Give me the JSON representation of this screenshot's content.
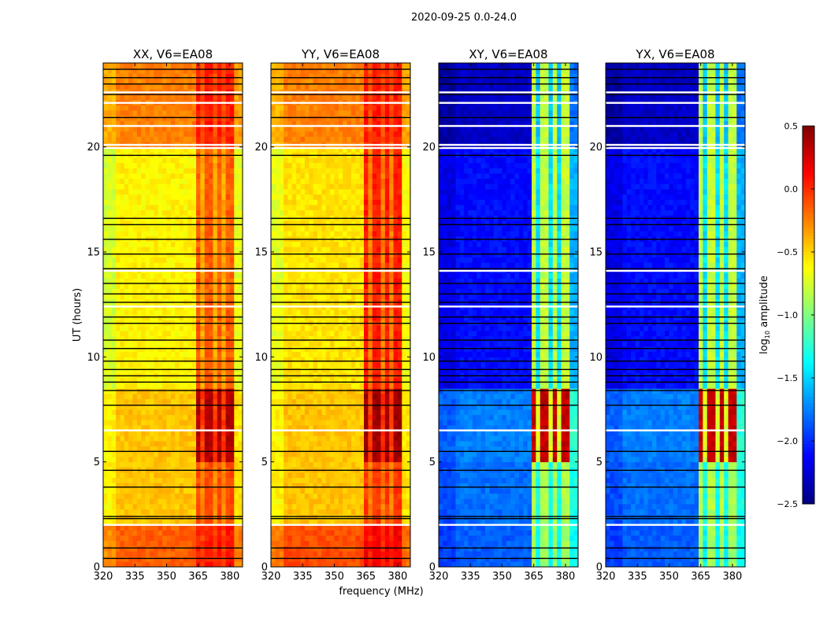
{
  "chart_data": {
    "type": "heatmap",
    "title": "2020-09-25 0.0-24.0",
    "xlabel": "frequency (MHz)",
    "ylabel": "UT (hours)",
    "xlim": [
      320,
      386
    ],
    "ylim": [
      0,
      24
    ],
    "xticks": [
      "320",
      "335",
      "350",
      "365",
      "380"
    ],
    "xtick_values": [
      320,
      335,
      350,
      365,
      380
    ],
    "yticks": [
      "0",
      "5",
      "10",
      "15",
      "20"
    ],
    "ytick_values": [
      0,
      5,
      10,
      15,
      20
    ],
    "colormap": "jet",
    "colorbar": {
      "label_main": "log",
      "label_sub": "10",
      "label_rest": " amplitude",
      "range": [
        -2.5,
        0.5
      ],
      "ticks": [
        "0.5",
        "0.0",
        "−0.5",
        "−1.0",
        "−1.5",
        "−2.0",
        "−2.5"
      ],
      "tick_values": [
        0.5,
        0.0,
        -0.5,
        -1.0,
        -1.5,
        -2.0,
        -2.5
      ]
    },
    "panels": [
      {
        "title": "XX, V6=EA08",
        "kind": "parallel",
        "segments": [
          {
            "t": [
              0,
              2
            ],
            "base": -0.15,
            "band": 0.05
          },
          {
            "t": [
              2,
              5
            ],
            "base": -0.45,
            "band": -0.1
          },
          {
            "t": [
              5,
              8.4
            ],
            "base": -0.45,
            "band": 0.35
          },
          {
            "t": [
              8.4,
              20
            ],
            "base": -0.6,
            "band": -0.15
          },
          {
            "t": [
              20,
              24
            ],
            "base": -0.25,
            "band": 0.05
          }
        ]
      },
      {
        "title": "YY, V6=EA08",
        "kind": "parallel",
        "segments": [
          {
            "t": [
              0,
              2
            ],
            "base": -0.1,
            "band": 0.15
          },
          {
            "t": [
              2,
              5
            ],
            "base": -0.45,
            "band": -0.05
          },
          {
            "t": [
              5,
              8.4
            ],
            "base": -0.45,
            "band": 0.4
          },
          {
            "t": [
              8.4,
              20
            ],
            "base": -0.55,
            "band": 0.05
          },
          {
            "t": [
              20,
              24
            ],
            "base": -0.25,
            "band": 0.05
          }
        ]
      },
      {
        "title": "XY, V6=EA08",
        "kind": "cross",
        "segments": [
          {
            "t": [
              0,
              2
            ],
            "base": -1.85,
            "band": -0.9
          },
          {
            "t": [
              2,
              5
            ],
            "base": -1.8,
            "band": -0.85
          },
          {
            "t": [
              5,
              8.4
            ],
            "base": -1.75,
            "band": 0.3
          },
          {
            "t": [
              8.4,
              20
            ],
            "base": -2.1,
            "band": -0.8
          },
          {
            "t": [
              20,
              24
            ],
            "base": -2.3,
            "band": -0.8
          }
        ]
      },
      {
        "title": "YX, V6=EA08",
        "kind": "cross",
        "segments": [
          {
            "t": [
              0,
              2
            ],
            "base": -1.85,
            "band": -0.9
          },
          {
            "t": [
              2,
              5
            ],
            "base": -1.8,
            "band": -0.85
          },
          {
            "t": [
              5,
              8.4
            ],
            "base": -1.75,
            "band": 0.3
          },
          {
            "t": [
              8.4,
              20
            ],
            "base": -2.1,
            "band": -0.8
          },
          {
            "t": [
              20,
              24
            ],
            "base": -2.3,
            "band": -0.8
          }
        ]
      }
    ],
    "rfi_band_mhz": [
      364,
      381
    ],
    "flagged_rows_black_hours": [
      0.4,
      0.9,
      2.3,
      2.4,
      3.8,
      4.6,
      5.5,
      7.7,
      8.4,
      8.8,
      9.1,
      9.4,
      9.8,
      10.4,
      10.8,
      11.6,
      11.9,
      12.6,
      13.0,
      13.5,
      14.2,
      14.9,
      15.6,
      16.3,
      16.6,
      19.6,
      21.4,
      22.5,
      23.0,
      23.3,
      23.7
    ],
    "gaps_white_hours": [
      2.0,
      6.5,
      12.4,
      14.1,
      19.95,
      20.1,
      21.0,
      22.1,
      22.6
    ]
  }
}
